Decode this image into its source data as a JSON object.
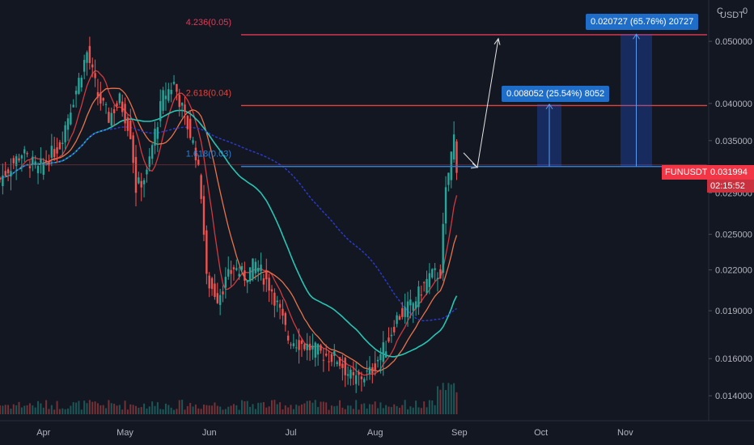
{
  "chart_data": {
    "type": "candlestick",
    "symbol": "FUNUSDT",
    "currency": "USDT",
    "scale": "log",
    "ylim": [
      0.0128,
      0.058
    ],
    "y_ticks": [
      "0.050000",
      "0.040000",
      "0.035000",
      "0.029000",
      "0.025000",
      "0.022000",
      "0.019000",
      "0.016000",
      "0.014000"
    ],
    "x_ticks": [
      "Apr",
      "May",
      "Jun",
      "Jul",
      "Aug",
      "Sep",
      "Oct",
      "Nov"
    ],
    "last_price": "0.031994",
    "countdown": "02:15:52",
    "fib_levels": [
      {
        "label": "4.236(0.05)",
        "value": 0.0512,
        "color": "#e53955"
      },
      {
        "label": "2.618(0.04)",
        "value": 0.0397,
        "color": "#e0443d"
      },
      {
        "label": "1.618(0.03)",
        "value": 0.0319,
        "color": "#2a7fd4"
      }
    ],
    "measurements": [
      {
        "label": "0.008052 (25.54%) 8052"
      },
      {
        "label": "0.020727 (65.76%) 20727"
      }
    ],
    "colors": {
      "up": "#26a69a",
      "down": "#ef5350",
      "ma_red": "#d1393f",
      "ma_orange": "#e8734a",
      "ma_teal": "#26c6b4",
      "ma_blue": "#2b3cd6"
    }
  },
  "header": {
    "corner_c": "C",
    "corner_zero": "0"
  }
}
